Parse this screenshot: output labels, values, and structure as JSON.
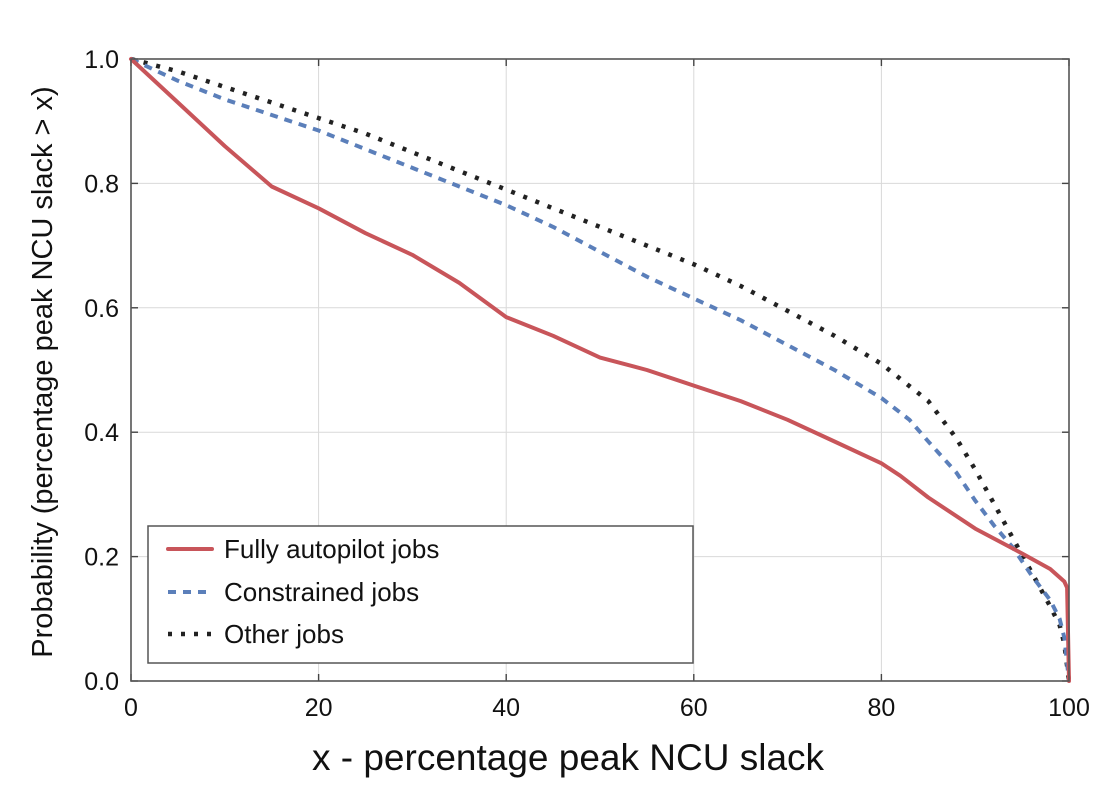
{
  "chart_data": {
    "type": "line",
    "title": "",
    "xlabel": "x - percentage peak NCU slack",
    "ylabel": "Probability (percentage peak NCU slack > x)",
    "xlim": [
      0,
      100
    ],
    "ylim": [
      0,
      1
    ],
    "xticks": [
      0,
      20,
      40,
      60,
      80,
      100
    ],
    "xtick_labels": [
      "0",
      "20",
      "40",
      "60",
      "80",
      "100"
    ],
    "yticks": [
      0,
      0.2,
      0.4,
      0.6,
      0.8,
      1.0
    ],
    "ytick_labels": [
      "0.0",
      "0.2",
      "0.4",
      "0.6",
      "0.8",
      "1.0"
    ],
    "grid": true,
    "legend_position": "bottom-left",
    "series": [
      {
        "name": "Fully autopilot jobs",
        "color": "#c8555a",
        "style": "solid",
        "x": [
          0,
          5,
          10,
          15,
          20,
          25,
          30,
          35,
          40,
          45,
          50,
          55,
          60,
          65,
          70,
          75,
          80,
          82,
          85,
          90,
          95,
          98,
          99.5,
          99.8,
          100
        ],
        "y": [
          1.0,
          0.93,
          0.86,
          0.795,
          0.76,
          0.72,
          0.685,
          0.64,
          0.585,
          0.555,
          0.52,
          0.5,
          0.475,
          0.45,
          0.42,
          0.385,
          0.35,
          0.33,
          0.295,
          0.245,
          0.205,
          0.18,
          0.16,
          0.15,
          0.0
        ]
      },
      {
        "name": "Constrained jobs",
        "color": "#5b7fba",
        "style": "dashed",
        "x": [
          0,
          5,
          10,
          15,
          20,
          25,
          30,
          35,
          40,
          45,
          50,
          55,
          60,
          65,
          70,
          75,
          80,
          83,
          85,
          88,
          90,
          92,
          94,
          96,
          98,
          99,
          99.5,
          100
        ],
        "y": [
          1.0,
          0.965,
          0.935,
          0.91,
          0.885,
          0.855,
          0.825,
          0.795,
          0.765,
          0.73,
          0.69,
          0.65,
          0.615,
          0.58,
          0.54,
          0.5,
          0.455,
          0.42,
          0.385,
          0.335,
          0.29,
          0.25,
          0.215,
          0.17,
          0.13,
          0.1,
          0.07,
          0.0
        ]
      },
      {
        "name": "Other jobs",
        "color": "#222222",
        "style": "dotted",
        "x": [
          0,
          5,
          10,
          15,
          20,
          25,
          30,
          35,
          40,
          45,
          50,
          55,
          60,
          65,
          70,
          75,
          80,
          85,
          88,
          90,
          92,
          94,
          96,
          98,
          99,
          99.5,
          100
        ],
        "y": [
          1.0,
          0.98,
          0.955,
          0.93,
          0.905,
          0.88,
          0.85,
          0.82,
          0.79,
          0.76,
          0.73,
          0.7,
          0.67,
          0.635,
          0.595,
          0.555,
          0.51,
          0.45,
          0.39,
          0.34,
          0.285,
          0.23,
          0.175,
          0.12,
          0.09,
          0.06,
          0.0
        ]
      }
    ]
  }
}
